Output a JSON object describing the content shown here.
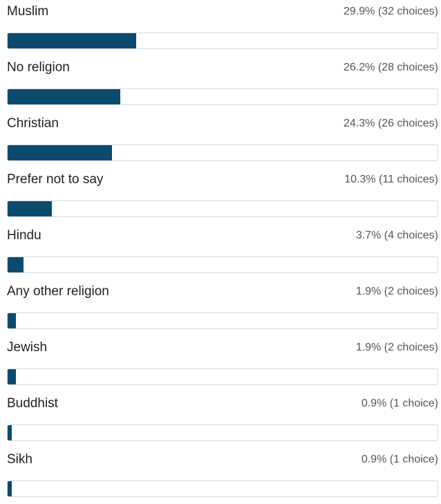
{
  "chart_data": {
    "type": "bar",
    "orientation": "horizontal",
    "categories": [
      "Muslim",
      "No religion",
      "Christian",
      "Prefer not to say",
      "Hindu",
      "Any other religion",
      "Jewish",
      "Buddhist",
      "Sikh"
    ],
    "values": [
      29.9,
      26.2,
      24.3,
      10.3,
      3.7,
      1.9,
      1.9,
      0.9,
      0.9
    ],
    "counts": [
      32,
      28,
      26,
      11,
      4,
      2,
      2,
      1,
      1
    ],
    "unit": "%",
    "bar_color": "#0c4a6e"
  },
  "rows": [
    {
      "label": "Muslim",
      "stat": "29.9% (32 choices)"
    },
    {
      "label": "No religion",
      "stat": "26.2% (28 choices)"
    },
    {
      "label": "Christian",
      "stat": "24.3% (26 choices)"
    },
    {
      "label": "Prefer not to say",
      "stat": "10.3% (11 choices)"
    },
    {
      "label": "Hindu",
      "stat": "3.7% (4 choices)"
    },
    {
      "label": "Any other religion",
      "stat": "1.9% (2 choices)"
    },
    {
      "label": "Jewish",
      "stat": "1.9% (2 choices)"
    },
    {
      "label": "Buddhist",
      "stat": "0.9% (1 choice)"
    },
    {
      "label": "Sikh",
      "stat": "0.9% (1 choice)"
    }
  ]
}
